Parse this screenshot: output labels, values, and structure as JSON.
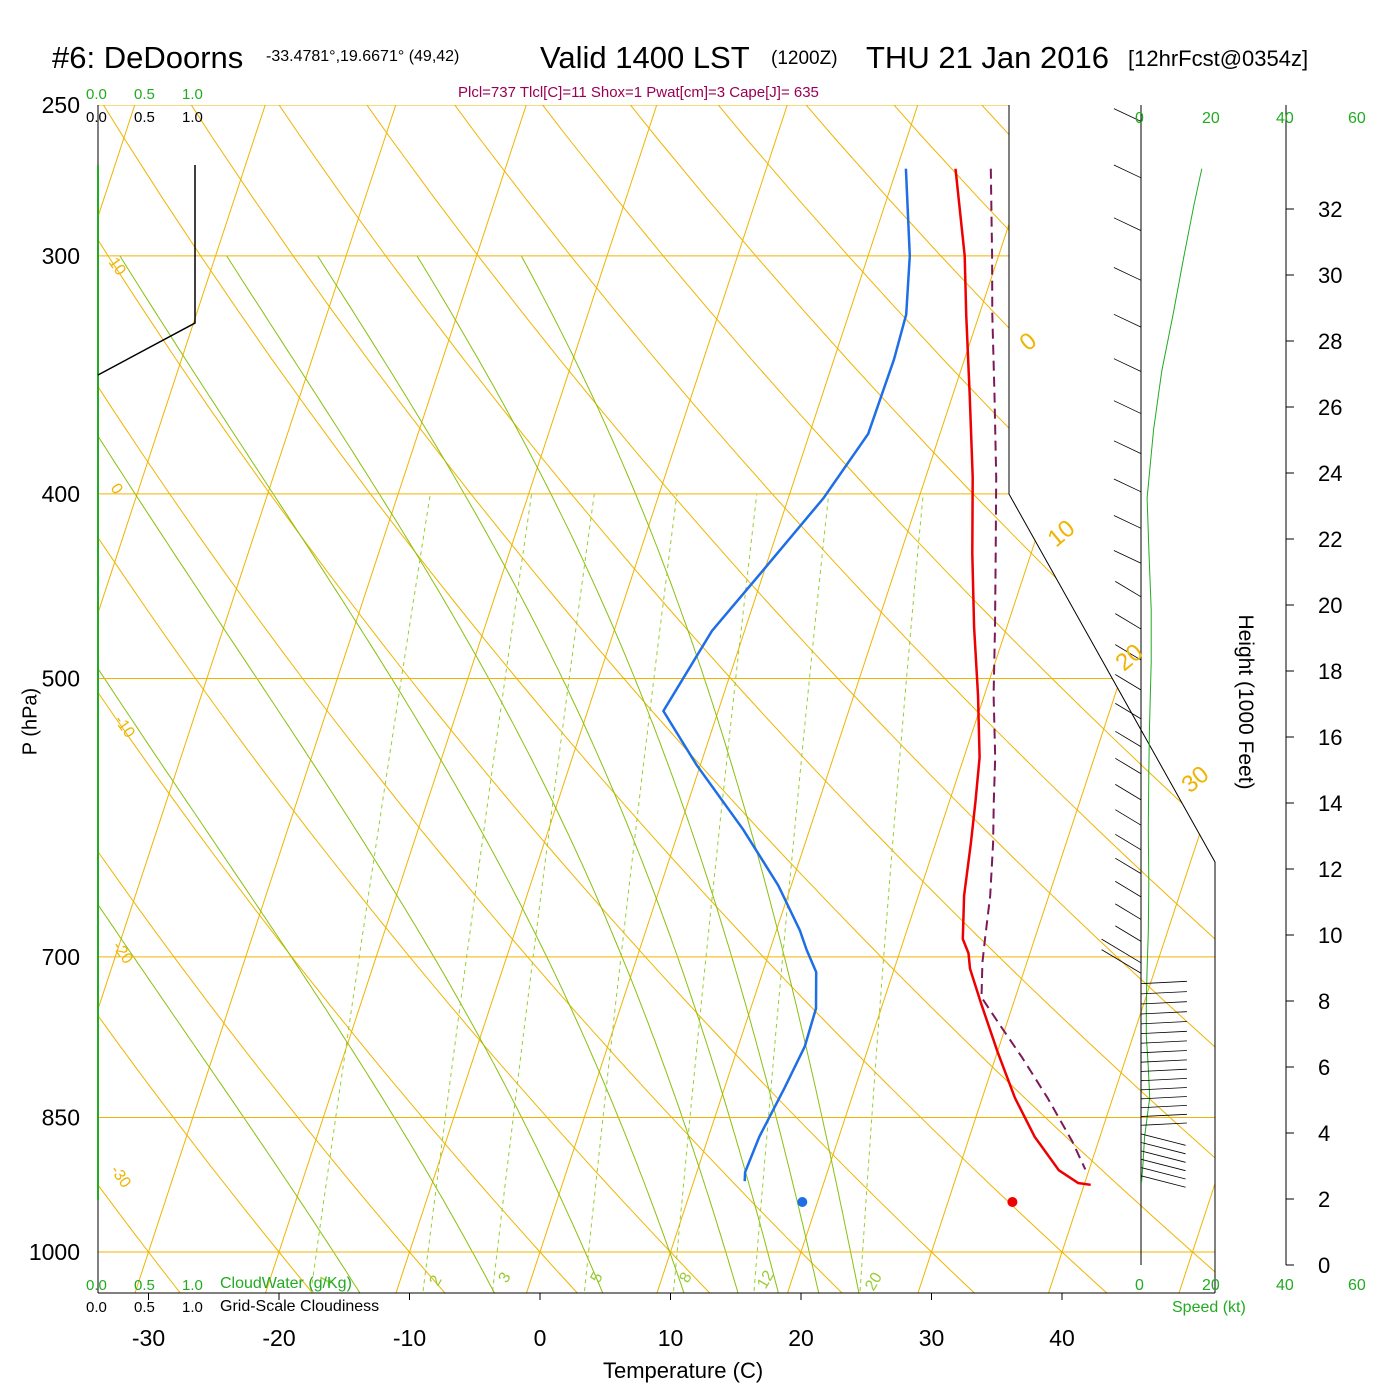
{
  "header": {
    "station": "#6: DeDoorns",
    "coords": "-33.4781°,19.6671° (49,42)",
    "valid": "Valid 1400 LST",
    "utc": "(1200Z)",
    "date": "THU 21 Jan 2016",
    "forecast": "[12hrFcst@0354z]",
    "indices": "Plcl=737 Tlcl[C]=11 Shox=1 Pwat[cm]=3 Cape[J]= 635"
  },
  "colors": {
    "isobar": "#f0b400",
    "mixing": "#99cc33",
    "moist": "#88c010",
    "temp": "#ee0000",
    "dew": "#1e6ee6",
    "parcel": "#7a1a5a",
    "green_label": "#22aa22",
    "indices": "#990055"
  },
  "left_panel": {
    "cloudwater_ticks": [
      "0.0",
      "0.5",
      "1.0"
    ],
    "cloudiness_ticks": [
      "0.0",
      "0.5",
      "1.0"
    ],
    "cloudwater_label": "CloudWater (g/Kg)",
    "cloudiness_label": "Grid-Scale Cloudiness"
  },
  "right_panel": {
    "speed_ticks": [
      "0",
      "20",
      "40",
      "60"
    ],
    "speed_label": "Speed (kt)",
    "height_label": "Height (1000 Feet)",
    "height_ticks": [
      "0",
      "2",
      "4",
      "6",
      "8",
      "10",
      "12",
      "14",
      "16",
      "18",
      "20",
      "22",
      "24",
      "26",
      "28",
      "30",
      "32"
    ]
  },
  "chart_data": {
    "type": "line",
    "xlabel": "Temperature (C)",
    "ylabel": "P (hPa)",
    "x_ticks": [
      "-30",
      "-20",
      "-10",
      "0",
      "10",
      "20",
      "30",
      "40"
    ],
    "pressure_ticks": [
      "250",
      "300",
      "400",
      "500",
      "700",
      "850",
      "1000"
    ],
    "dry_adiabat_labels": [
      "10",
      "0",
      "-10",
      "-20",
      "-30"
    ],
    "dry_adiabat_labels_right": [
      "0",
      "10",
      "20",
      "30"
    ],
    "mixing_ratio_labels": [
      "1",
      "2",
      "3",
      "5",
      "8",
      "12",
      "20"
    ],
    "series": [
      {
        "name": "Temperature",
        "points": [
          [
            4.5,
            270
          ],
          [
            7.4,
            300
          ],
          [
            9,
            322
          ],
          [
            11.3,
            355
          ],
          [
            13.6,
            392
          ],
          [
            15.5,
            430
          ],
          [
            17.5,
            470
          ],
          [
            19.5,
            510
          ],
          [
            21.2,
            550
          ],
          [
            22,
            580
          ],
          [
            22.7,
            610
          ],
          [
            23.5,
            650
          ],
          [
            24.5,
            685
          ],
          [
            25.3,
            697
          ],
          [
            25.8,
            710
          ],
          [
            27.5,
            740
          ],
          [
            30,
            785
          ],
          [
            32.5,
            830
          ],
          [
            35,
            870
          ],
          [
            37.7,
            906
          ],
          [
            39.5,
            920
          ],
          [
            40.5,
            922
          ]
        ]
      },
      {
        "name": "Dewpoint",
        "points": [
          [
            0.7,
            270
          ],
          [
            3.2,
            300
          ],
          [
            4.4,
            322
          ],
          [
            4.6,
            340
          ],
          [
            4.5,
            372
          ],
          [
            2.7,
            402
          ],
          [
            -0.2,
            440
          ],
          [
            -2.5,
            472
          ],
          [
            -4.2,
            520
          ],
          [
            -0.3,
            555
          ],
          [
            4.9,
            600
          ],
          [
            9,
            642
          ],
          [
            11.8,
            678
          ],
          [
            12.8,
            694
          ],
          [
            14.1,
            713
          ],
          [
            15,
            745
          ],
          [
            15.1,
            780
          ],
          [
            14.6,
            820
          ],
          [
            13.9,
            870
          ],
          [
            13.7,
            908
          ],
          [
            13.9,
            918
          ]
        ]
      },
      {
        "name": "Parcel",
        "points": [
          [
            7.2,
            270
          ],
          [
            9.5,
            300
          ],
          [
            11,
            322
          ],
          [
            13.2,
            355
          ],
          [
            15.4,
            392
          ],
          [
            17.3,
            430
          ],
          [
            19.1,
            470
          ],
          [
            20.7,
            510
          ],
          [
            22.4,
            550
          ],
          [
            23.4,
            580
          ],
          [
            24.4,
            610
          ],
          [
            25.5,
            650
          ],
          [
            26.2,
            685
          ],
          [
            26.6,
            705
          ],
          [
            27.4,
            735
          ],
          [
            29.5,
            760
          ],
          [
            32,
            790
          ],
          [
            35,
            830
          ],
          [
            38,
            875
          ],
          [
            39.7,
            905
          ]
        ]
      }
    ],
    "surface_temperature": 36.2,
    "surface_dewpoint": 20.1,
    "height_kft_range": [
      0,
      33
    ],
    "wind_speed_range": [
      0,
      60
    ],
    "wind_speed_profile": [
      [
        0.2,
        920
      ],
      [
        0.8,
        900
      ],
      [
        1.5,
        870
      ],
      [
        2.5,
        850
      ],
      [
        3.6,
        830
      ],
      [
        3,
        800
      ],
      [
        2.2,
        770
      ],
      [
        2.2,
        740
      ],
      [
        2.5,
        710
      ],
      [
        3,
        680
      ],
      [
        3.2,
        640
      ],
      [
        3,
        600
      ],
      [
        3.2,
        560
      ],
      [
        3.5,
        530
      ],
      [
        4.2,
        490
      ],
      [
        4.2,
        460
      ],
      [
        3.3,
        430
      ],
      [
        2.5,
        402
      ],
      [
        5.2,
        370
      ],
      [
        8.5,
        345
      ],
      [
        13.2,
        322
      ],
      [
        17.7,
        300
      ],
      [
        21.8,
        282
      ],
      [
        25,
        270
      ]
    ]
  }
}
